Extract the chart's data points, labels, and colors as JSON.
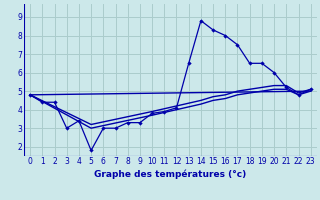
{
  "xlabel": "Graphe des températures (°c)",
  "bg_color": "#cce8ea",
  "grid_color": "#aacccc",
  "line_color": "#0000aa",
  "xlim": [
    -0.5,
    23.5
  ],
  "ylim": [
    1.5,
    9.7
  ],
  "xticks": [
    0,
    1,
    2,
    3,
    4,
    5,
    6,
    7,
    8,
    9,
    10,
    11,
    12,
    13,
    14,
    15,
    16,
    17,
    18,
    19,
    20,
    21,
    22,
    23
  ],
  "yticks": [
    2,
    3,
    4,
    5,
    6,
    7,
    8,
    9
  ],
  "main_x": [
    0,
    1,
    2,
    3,
    4,
    5,
    6,
    7,
    8,
    9,
    10,
    11,
    12,
    13,
    14,
    15,
    16,
    17,
    18,
    19,
    20,
    21,
    22,
    23
  ],
  "main_y": [
    4.8,
    4.4,
    4.4,
    3.0,
    3.4,
    1.8,
    3.0,
    3.0,
    3.3,
    3.3,
    3.8,
    3.9,
    4.1,
    6.5,
    8.8,
    8.3,
    8.0,
    7.5,
    6.5,
    6.5,
    6.0,
    5.2,
    4.8,
    5.1
  ],
  "trend1_x": [
    0,
    5,
    10,
    14,
    15,
    16,
    17,
    18,
    19,
    20,
    21,
    22,
    23
  ],
  "trend1_y": [
    4.8,
    3.2,
    3.9,
    4.5,
    4.7,
    4.8,
    5.0,
    5.1,
    5.2,
    5.3,
    5.3,
    4.9,
    5.1
  ],
  "trend2_x": [
    0,
    5,
    10,
    14,
    15,
    16,
    17,
    18,
    19,
    20,
    21,
    22,
    23
  ],
  "trend2_y": [
    4.8,
    3.0,
    3.7,
    4.3,
    4.5,
    4.6,
    4.8,
    4.9,
    5.0,
    5.1,
    5.1,
    4.8,
    5.0
  ],
  "trend3_x": [
    0,
    23
  ],
  "trend3_y": [
    4.8,
    5.0
  ]
}
